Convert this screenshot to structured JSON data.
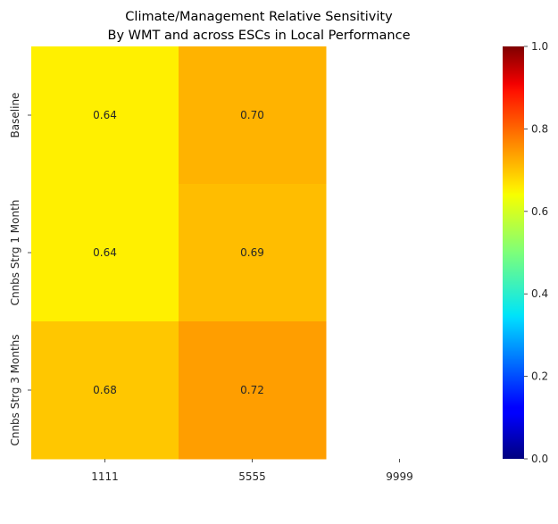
{
  "chart_data": {
    "type": "heatmap",
    "title_lines": [
      "Climate/Management Relative Sensitivity",
      "By WMT and across ESCs in Local Performance"
    ],
    "x_categories": [
      "1111",
      "5555",
      "9999"
    ],
    "y_categories": [
      "Baseline",
      "Cnnbs Strg 1 Month",
      "Cnnbs Strg 3 Months"
    ],
    "values": [
      [
        0.64,
        0.7,
        null
      ],
      [
        0.64,
        0.69,
        null
      ],
      [
        0.68,
        0.72,
        null
      ]
    ],
    "value_labels": [
      [
        "0.64",
        "0.70",
        ""
      ],
      [
        "0.64",
        "0.69",
        ""
      ],
      [
        "0.68",
        "0.72",
        ""
      ]
    ],
    "colormap": "jet",
    "vmin": 0.0,
    "vmax": 1.0,
    "colorbar_ticks": [
      0.0,
      0.2,
      0.4,
      0.6,
      0.8,
      1.0
    ],
    "colorbar_tick_labels": [
      "0.0",
      "0.2",
      "0.4",
      "0.6",
      "0.8",
      "1.0"
    ],
    "colorbar_position": "right"
  }
}
